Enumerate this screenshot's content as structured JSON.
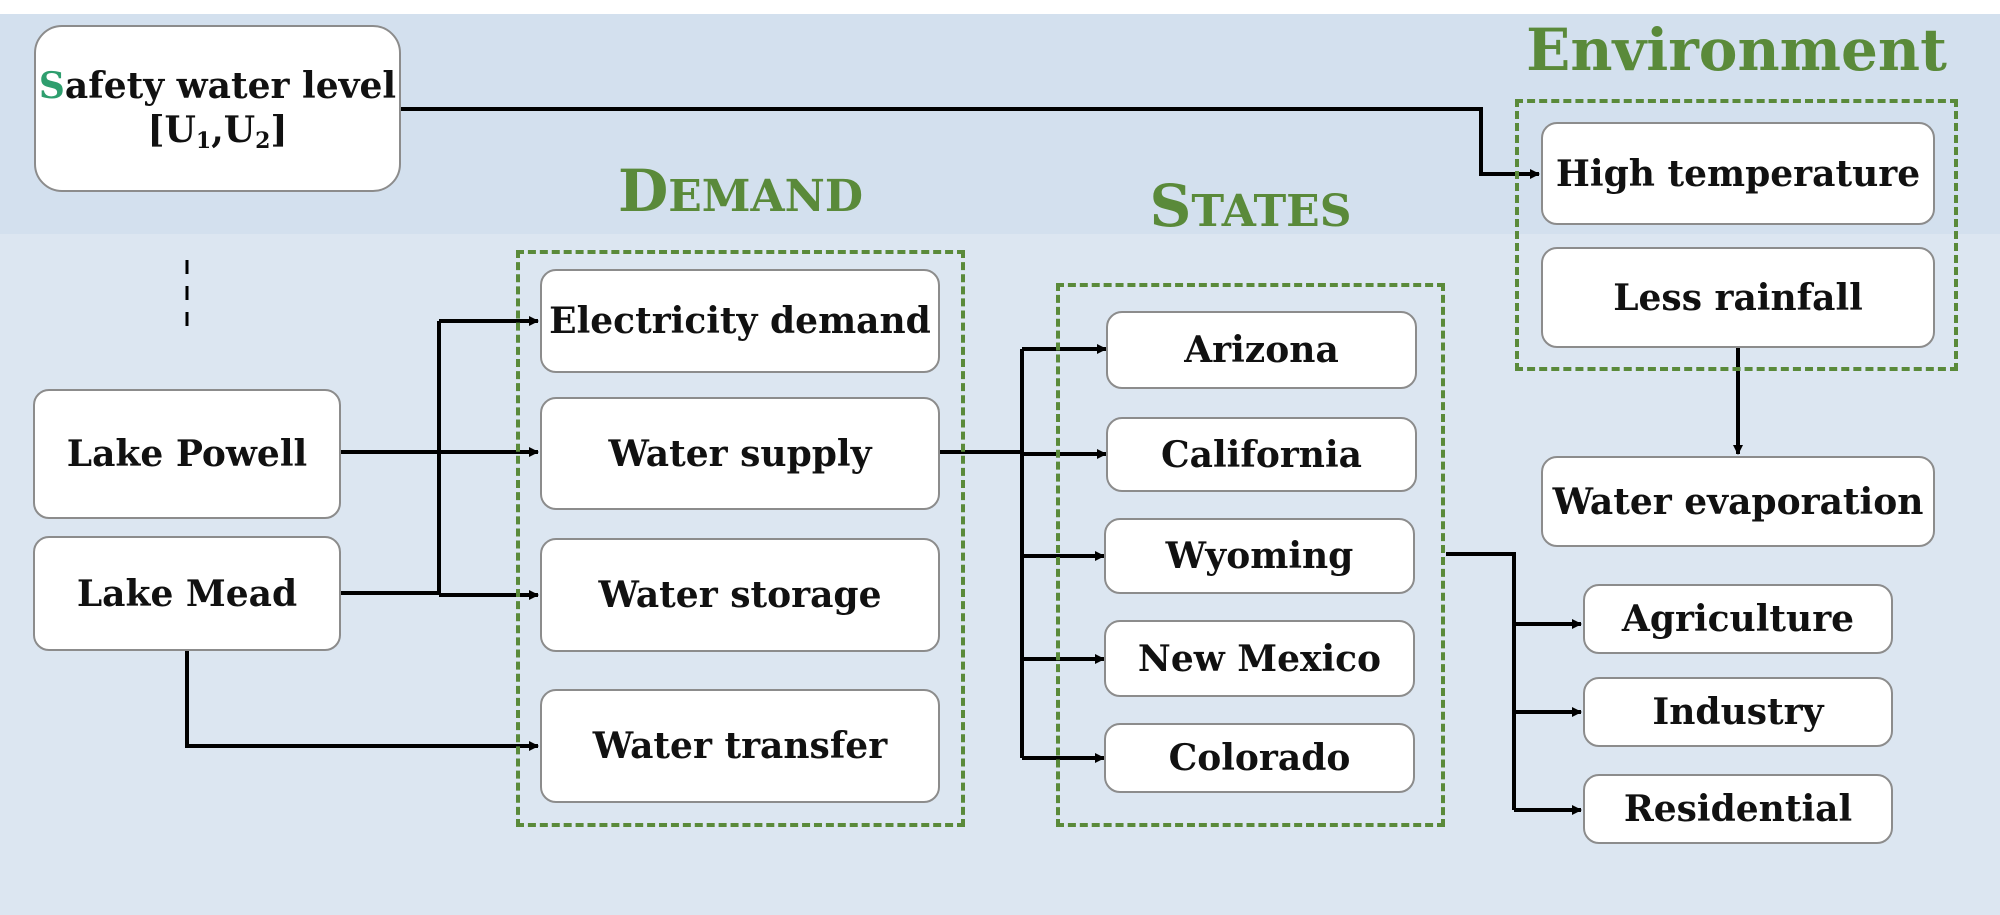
{
  "colors": {
    "band_top": "#d3e0ee",
    "band_bottom": "#dce6f1",
    "group_border": "#5a8a3a",
    "title_green": "#5a8a3a",
    "accent_letter": "#2e9e6e",
    "node_border": "#8c8c8c",
    "arrow": "#000000"
  },
  "safety": {
    "first_letter": "S",
    "rest": "afety water level",
    "bracket_open": "[U",
    "sub1": "1",
    "comma_u": ",U",
    "sub2": "2",
    "bracket_close": "]"
  },
  "groups": {
    "environment": {
      "title": "Environment"
    },
    "demand": {
      "title_first": "D",
      "title_rest": "EMAND"
    },
    "states": {
      "title_first": "S",
      "title_rest": "TATES"
    }
  },
  "sources": {
    "lake_powell": "Lake Powell",
    "lake_mead": "Lake Mead"
  },
  "demand": {
    "electricity": "Electricity demand",
    "supply": "Water supply",
    "storage": "Water storage",
    "transfer": "Water transfer"
  },
  "states": {
    "arizona": "Arizona",
    "california": "California",
    "wyoming": "Wyoming",
    "new_mexico": "New Mexico",
    "colorado": "Colorado"
  },
  "environment": {
    "high_temperature": "High temperature",
    "less_rainfall": "Less rainfall",
    "water_evaporation": "Water evaporation"
  },
  "uses": {
    "agriculture": "Agriculture",
    "industry": "Industry",
    "residential": "Residential"
  }
}
